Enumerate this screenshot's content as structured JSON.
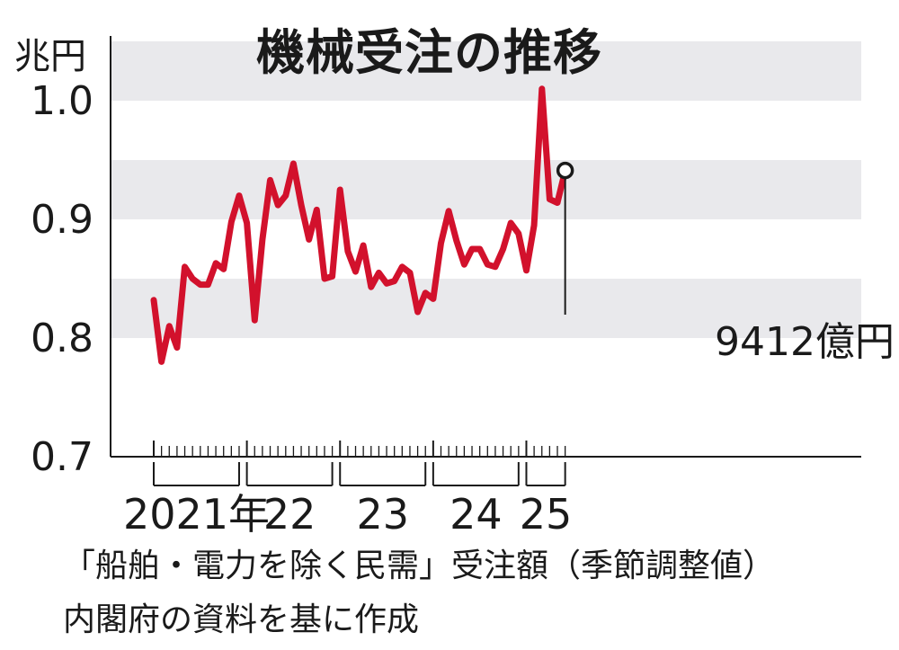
{
  "chart_data": {
    "type": "line",
    "title": "機械受注の推移",
    "ylabel": "兆円",
    "ylim": [
      0.7,
      1.0
    ],
    "y_ticks": [
      "0.7",
      "0.8",
      "0.9",
      "1.0"
    ],
    "x_year_labels": [
      "2021年",
      "22",
      "23",
      "24",
      "25"
    ],
    "x_start": "2021-01",
    "series": [
      {
        "values": [
          0.832,
          0.78,
          0.81,
          0.792,
          0.86,
          0.85,
          0.845,
          0.845,
          0.863,
          0.858,
          0.898,
          0.92,
          0.897,
          0.815,
          0.883,
          0.933,
          0.912,
          0.92,
          0.947,
          0.912,
          0.883,
          0.908,
          0.85,
          0.852,
          0.925,
          0.873,
          0.856,
          0.878,
          0.843,
          0.855,
          0.846,
          0.848,
          0.86,
          0.855,
          0.822,
          0.838,
          0.833,
          0.88,
          0.907,
          0.882,
          0.862,
          0.875,
          0.875,
          0.862,
          0.86,
          0.875,
          0.897,
          0.888,
          0.857,
          0.895,
          1.01,
          0.917,
          0.914,
          0.9412
        ]
      }
    ],
    "annotation": "9412億円",
    "grid_bands": true
  },
  "notes": {
    "line1": "「船舶・電力を除く民需」受注額（季節調整値）",
    "line2": "内閣府の資料を基に作成"
  }
}
